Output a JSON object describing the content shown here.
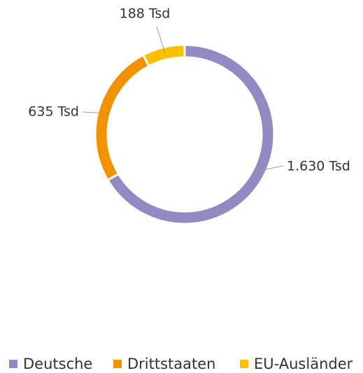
{
  "chart_data": {
    "type": "pie",
    "categories": [
      "Deutsche",
      "Drittstaaten",
      "EU-Ausländer"
    ],
    "values": [
      1630,
      635,
      188
    ],
    "value_labels": [
      "1.630 Tsd",
      "635 Tsd",
      "188 Tsd"
    ],
    "colors": [
      "#9589c3",
      "#f39200",
      "#fbc000"
    ],
    "legend": "bottom"
  }
}
